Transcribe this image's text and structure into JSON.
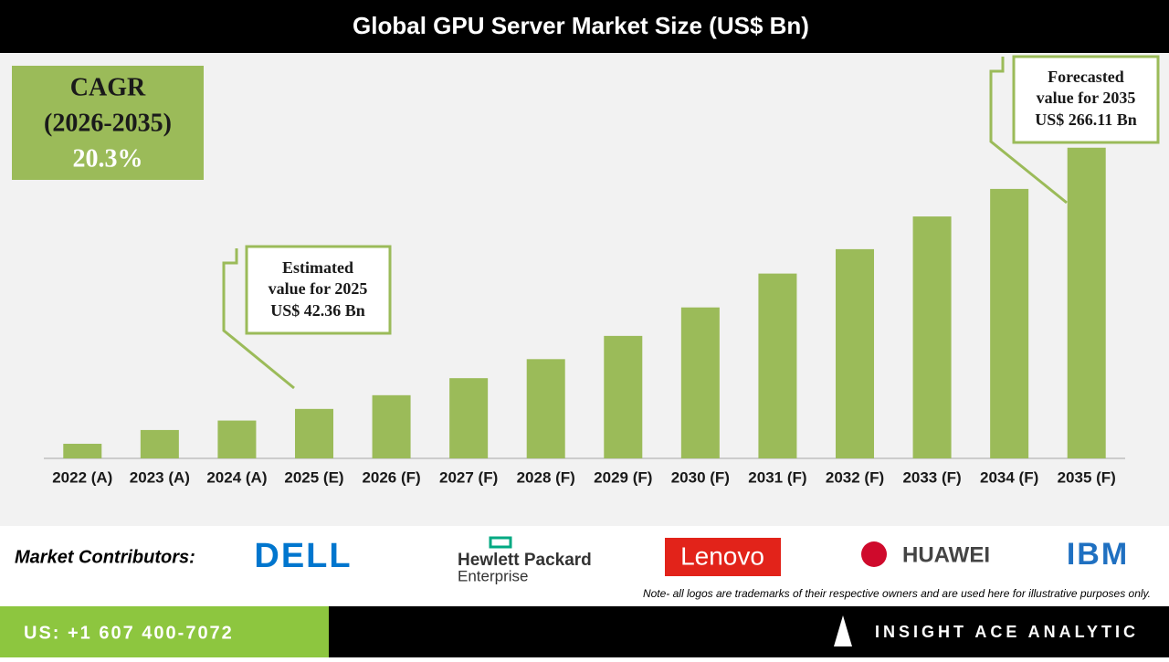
{
  "chart_data": {
    "type": "bar",
    "title": "Global GPU Server Market Size (US$ Bn)",
    "categories": [
      "2022 (A)",
      "2023 (A)",
      "2024 (A)",
      "2025 (E)",
      "2026 (F)",
      "2027 (F)",
      "2028 (F)",
      "2029 (F)",
      "2030 (F)",
      "2031 (F)",
      "2032 (F)",
      "2033 (F)",
      "2034 (F)",
      "2035 (F)"
    ],
    "values": [
      12.5,
      24.3,
      32.4,
      42.36,
      54.1,
      68.7,
      85,
      104.9,
      129.3,
      158.3,
      179.2,
      207.2,
      230.8,
      266.11
    ],
    "color": "#9bbb59",
    "ylim": [
      0,
      280
    ],
    "cagr": {
      "label": "CAGR",
      "period": "(2026-2035)",
      "value": "20.3%"
    },
    "estimated_note": [
      "Estimated",
      "value for 2025",
      "US$ 42.36 Bn"
    ],
    "forecast_note": [
      "Forecasted",
      "value for 2035",
      "US$ 266.11 Bn"
    ]
  },
  "footer": {
    "contributors_label": "Market Contributors:",
    "logos": [
      "DELL",
      "Hewlett Packard",
      "Enterprise",
      "Lenovo",
      "HUAWEI",
      "IBM"
    ],
    "note": "Note- all logos are trademarks of their respective owners and are used here for illustrative purposes only.",
    "phone": "US: +1 607 400-7072",
    "brand": "INSIGHT ACE ANALYTIC"
  }
}
